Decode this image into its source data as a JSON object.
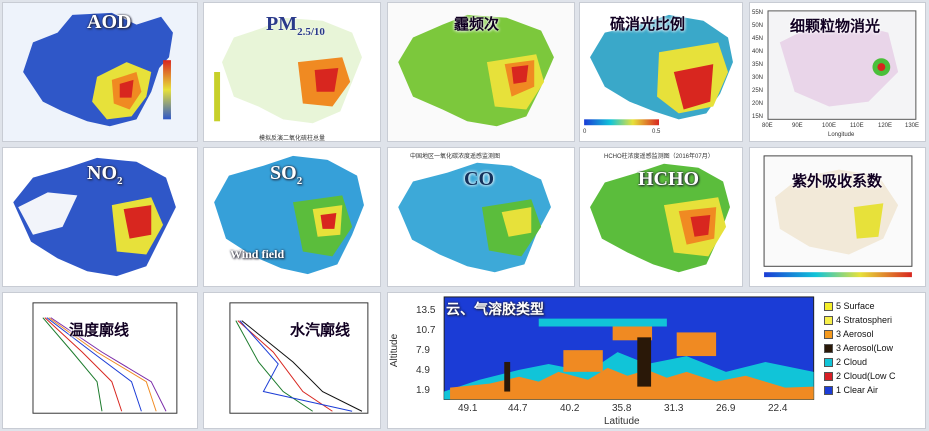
{
  "tiles": {
    "aod": {
      "label": "AOD"
    },
    "pm": {
      "label_main": "PM",
      "label_sub": "2.5/10",
      "caption": "模拟反演二氧化硫柱总量"
    },
    "haze": {
      "label": "霾频次"
    },
    "sulfate": {
      "label": "硫消光比例",
      "colorbar_min": "0",
      "colorbar_max": "0.5"
    },
    "fine": {
      "label": "细颗粒物消光",
      "x_ticks": [
        "80E",
        "90E",
        "100E",
        "110E",
        "120E",
        "130E"
      ],
      "x_label": "Longitude",
      "y_ticks": [
        "55N",
        "50N",
        "45N",
        "40N",
        "35N",
        "30N",
        "25N",
        "20N",
        "15N"
      ]
    },
    "no2": {
      "label_main": "NO",
      "label_sub": "2"
    },
    "so2": {
      "label_main": "SO",
      "label_sub": "2",
      "sublabel": "Wind field"
    },
    "co": {
      "label": "CO",
      "title": "中国地区一氧化碳浓度遥感监测图"
    },
    "hcho": {
      "label": "HCHO",
      "title": "HCHO柱浓度遥感监测图（2016年07月）"
    },
    "uv": {
      "label": "紫外吸收系数"
    },
    "temp": {
      "label": "温度廓线"
    },
    "humidity": {
      "label": "水汽廓线"
    },
    "aerosol": {
      "label": "云、气溶胶类型",
      "y_axis_label": "Altitude",
      "y_ticks": [
        "13.5",
        "10.7",
        "7.9",
        "4.9",
        "1.9"
      ],
      "x_axis_label": "Latitude",
      "x_ticks": [
        "49.1",
        "44.7",
        "40.2",
        "35.8",
        "31.3",
        "26.9",
        "22.4"
      ],
      "legend": [
        {
          "label": "5 Surface",
          "color": "#f5ee2a"
        },
        {
          "label": "4 Stratospheri",
          "color": "#f7ef4a"
        },
        {
          "label": "3 Aerosol",
          "color": "#f59a1e"
        },
        {
          "label": "3 Aerosol(Low",
          "color": "#2a1808"
        },
        {
          "label": "2 Cloud",
          "color": "#11c4d8"
        },
        {
          "label": "2 Cloud(Low C",
          "color": "#d81f26"
        },
        {
          "label": "1 Clear Air",
          "color": "#1b3cd6"
        }
      ]
    }
  },
  "colors": {
    "blue": "#2f57c8",
    "green": "#5bbd3c",
    "yellow": "#e7e13a",
    "orange": "#f08a22",
    "red": "#d8261f"
  }
}
